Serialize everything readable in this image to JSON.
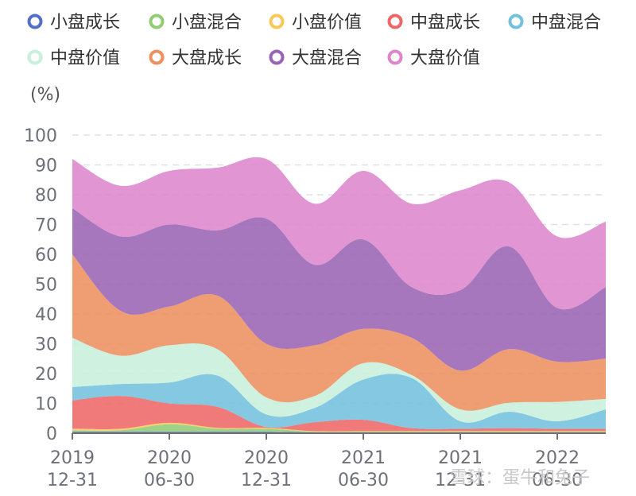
{
  "chart_data": {
    "type": "area",
    "stacked": true,
    "unit": "(%)",
    "ylim": [
      0,
      100
    ],
    "yticks": [
      0,
      10,
      20,
      30,
      40,
      50,
      60,
      70,
      80,
      90,
      100
    ],
    "grid": true,
    "legend_position": "top",
    "x": [
      "2019-12-31",
      "2020-03-31",
      "2020-06-30",
      "2020-09-30",
      "2020-12-31",
      "2021-03-31",
      "2021-06-30",
      "2021-09-30",
      "2021-12-31",
      "2022-03-31",
      "2022-06-30",
      "2022-09-30"
    ],
    "x_tick_labels": [
      {
        "index": 0,
        "line1": "2019",
        "line2": "12-31"
      },
      {
        "index": 2,
        "line1": "2020",
        "line2": "06-30"
      },
      {
        "index": 4,
        "line1": "2020",
        "line2": "12-31"
      },
      {
        "index": 6,
        "line1": "2021",
        "line2": "06-30"
      },
      {
        "index": 8,
        "line1": "2021",
        "line2": "12-31"
      },
      {
        "index": 10,
        "line1": "2022",
        "line2": "06-30"
      }
    ],
    "series": [
      {
        "name": "小盘成长",
        "color": "#5470c6",
        "values": [
          0.5,
          0.5,
          0.5,
          0.5,
          0.5,
          0.3,
          0.3,
          0.3,
          0.3,
          0.3,
          0.3,
          0.3
        ]
      },
      {
        "name": "小盘混合",
        "color": "#91cc75",
        "values": [
          0.5,
          0.5,
          2.5,
          1.0,
          1.0,
          0.2,
          0.2,
          0.2,
          0.2,
          0.2,
          0.2,
          0.2
        ]
      },
      {
        "name": "小盘价值",
        "color": "#fac858",
        "values": [
          0.5,
          0.5,
          0.5,
          0.3,
          0.3,
          0.2,
          0.2,
          0.2,
          0.2,
          0.2,
          0.2,
          0.2
        ]
      },
      {
        "name": "中盘成长",
        "color": "#ee6666",
        "values": [
          9.5,
          11.0,
          6.5,
          7.0,
          0.3,
          3.0,
          3.8,
          1.0,
          0.8,
          1.0,
          0.8,
          0.8
        ]
      },
      {
        "name": "中盘混合",
        "color": "#73c0de",
        "values": [
          4.5,
          4.0,
          7.0,
          10.5,
          4.2,
          4.8,
          13.5,
          16.8,
          2.5,
          5.5,
          2.5,
          6.5
        ]
      },
      {
        "name": "中盘价值",
        "color": "#c8f0dc",
        "values": [
          16.5,
          9.5,
          12.5,
          8.8,
          5.7,
          4.0,
          5.5,
          1.0,
          4.0,
          3.0,
          6.5,
          3.5
        ]
      },
      {
        "name": "大盘成长",
        "color": "#ed8f5e",
        "values": [
          28.0,
          15.0,
          13.0,
          18.0,
          18.0,
          17.0,
          11.5,
          12.5,
          13.0,
          18.0,
          13.5,
          13.5
        ]
      },
      {
        "name": "大盘混合",
        "color": "#9a64b4",
        "values": [
          15.5,
          25.0,
          27.5,
          22.0,
          42.0,
          27.0,
          30.0,
          17.0,
          27.0,
          34.5,
          18.0,
          24.0
        ]
      },
      {
        "name": "大盘价值",
        "color": "#dd86cc",
        "values": [
          16.5,
          17.0,
          18.0,
          21.0,
          20.0,
          20.5,
          23.0,
          28.0,
          33.5,
          21.5,
          24.0,
          22.0
        ]
      }
    ]
  },
  "watermark": "雪球：蛋牛和兔子"
}
